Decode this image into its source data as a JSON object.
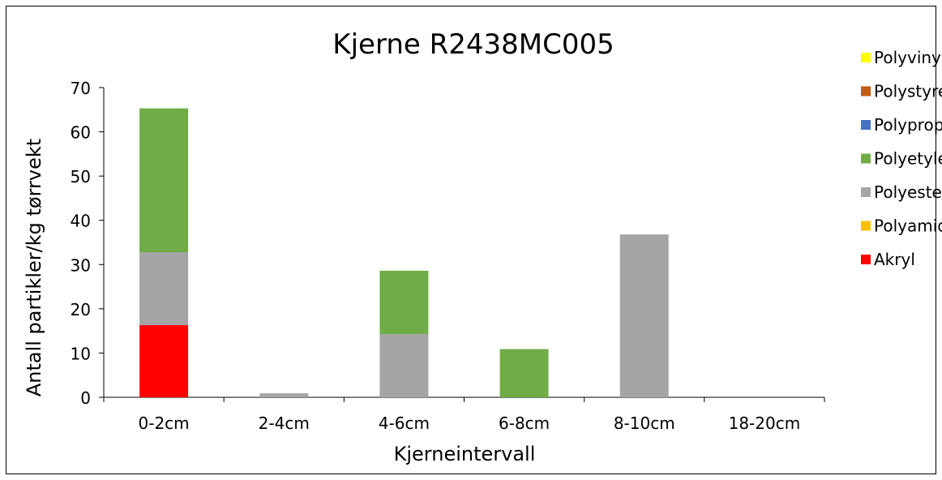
{
  "chart_data": {
    "type": "bar",
    "stacked": true,
    "title": "Kjerne R2438MC005",
    "xlabel": "Kjerneintervall",
    "ylabel": "Antall partikler/kg tørrvekt",
    "ylim": [
      0,
      70
    ],
    "yticks": [
      "0",
      "10",
      "20",
      "30",
      "40",
      "50",
      "60",
      "70"
    ],
    "grid": false,
    "legend_position": "right",
    "categories": [
      "0-2cm",
      "2-4cm",
      "4-6cm",
      "6-8cm",
      "8-10cm",
      "18-20cm"
    ],
    "series": [
      {
        "name": "Akryl",
        "color": "#ff0000",
        "values": [
          16.3,
          0,
          0,
          0,
          0,
          0
        ]
      },
      {
        "name": "Polyamid",
        "color": "#ffc000",
        "values": [
          0,
          0,
          0,
          0,
          0,
          0
        ]
      },
      {
        "name": "Polyester",
        "color": "#a5a5a5",
        "values": [
          16.5,
          0.9,
          14.3,
          0,
          36.8,
          0
        ]
      },
      {
        "name": "Polyetylen",
        "color": "#70ad47",
        "values": [
          32.5,
          0,
          14.3,
          10.9,
          0,
          0
        ]
      },
      {
        "name": "Polypropylen",
        "color": "#4472c4",
        "values": [
          0,
          0,
          0,
          0,
          0,
          0
        ]
      },
      {
        "name": "Polystyren",
        "color": "#c55a11",
        "values": [
          0,
          0,
          0,
          0,
          0,
          0
        ]
      },
      {
        "name": "Polyvinylklorid",
        "color": "#ffff00",
        "values": [
          0,
          0,
          0,
          0,
          0,
          0
        ]
      }
    ]
  }
}
